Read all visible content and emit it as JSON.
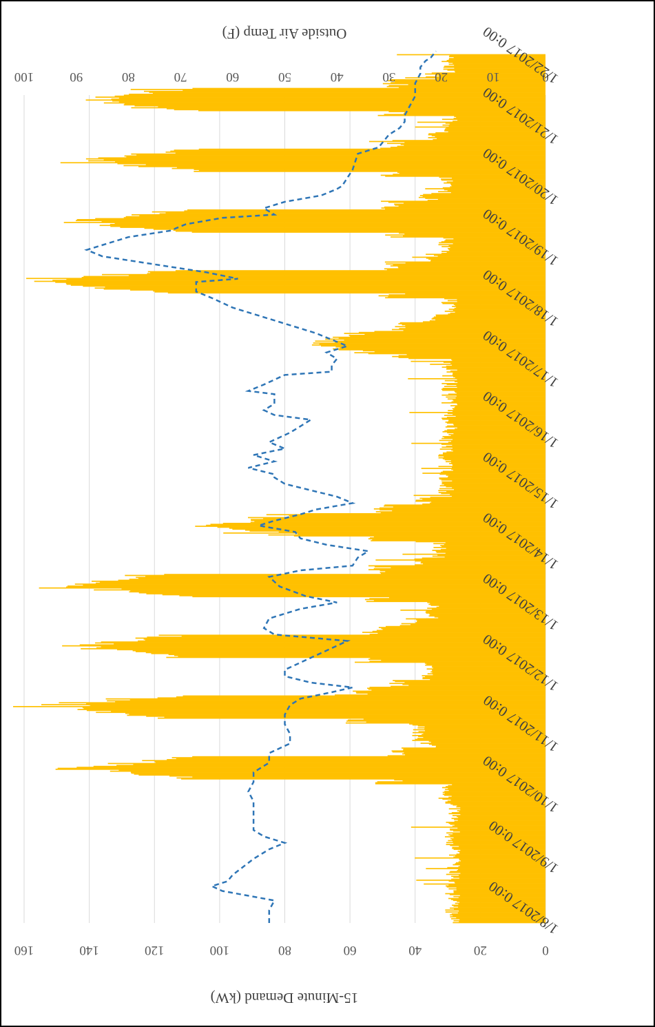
{
  "chart_data": {
    "type": "bar",
    "orientation": "rotated-180-degrees",
    "title": "",
    "xlabel": "",
    "ylabel": "15-Minute Demand (kW)",
    "y2label": "Outside Air Temp (F)",
    "ylim": [
      0,
      160
    ],
    "y2lim": [
      0,
      100
    ],
    "yticks": [
      "0",
      "20",
      "40",
      "60",
      "80",
      "100",
      "120",
      "140",
      "160"
    ],
    "y2ticks": [
      "0",
      "10",
      "20",
      "30",
      "40",
      "50",
      "60",
      "70",
      "80",
      "90",
      "100"
    ],
    "categories": [
      "1/8/2017 0:00",
      "1/9/2017 0:00",
      "1/10/2017 0:00",
      "1/11/2017 0:00",
      "1/12/2017 0:00",
      "1/13/2017 0:00",
      "1/14/2017 0:00",
      "1/15/2017 0:00",
      "1/16/2017 0:00",
      "1/17/2017 0:00",
      "1/18/2017 0:00",
      "1/19/2017 0:00",
      "1/20/2017 0:00",
      "1/21/2017 0:00",
      "1/22/2017 0:00"
    ],
    "grid": true,
    "colors": {
      "demand": "#FFC000",
      "temperature": "#2E75B6",
      "grid": "#D9D9D9"
    },
    "series": [
      {
        "type": "bar",
        "axis": "primary",
        "days": [
          {
            "date": "1/8/2017",
            "base": 26,
            "peak": 30
          },
          {
            "date": "1/9/2017",
            "base": 26,
            "peak": 30
          },
          {
            "date": "1/10/2017",
            "base": 28,
            "peak": 146
          },
          {
            "date": "1/11/2017",
            "base": 37,
            "peak": 154
          },
          {
            "date": "1/12/2017",
            "base": 34,
            "peak": 150
          },
          {
            "date": "1/13/2017",
            "base": 32,
            "peak": 152
          },
          {
            "date": "1/14/2017",
            "base": 30,
            "peak": 106
          },
          {
            "date": "1/15/2017",
            "base": 28,
            "peak": 28
          },
          {
            "date": "1/16/2017",
            "base": 27,
            "peak": 27
          },
          {
            "date": "1/17/2017",
            "base": 27,
            "peak": 77
          },
          {
            "date": "1/18/2017",
            "base": 27,
            "peak": 158
          },
          {
            "date": "1/19/2017",
            "base": 28,
            "peak": 150
          },
          {
            "date": "1/20/2017",
            "base": 28,
            "peak": 145
          },
          {
            "date": "1/21/2017",
            "base": 27,
            "peak": 146
          },
          {
            "date": "1/22/2017",
            "base": 27,
            "peak": 55
          }
        ]
      },
      {
        "type": "line",
        "axis": "secondary",
        "style": "dashed",
        "points": [
          [
            0.0,
            53
          ],
          [
            0.4,
            53
          ],
          [
            0.7,
            52
          ],
          [
            0.85,
            57
          ],
          [
            1.0,
            62
          ],
          [
            1.15,
            64
          ],
          [
            1.3,
            61
          ],
          [
            1.5,
            60
          ],
          [
            1.75,
            58
          ],
          [
            2.0,
            56
          ],
          [
            2.3,
            53
          ],
          [
            2.5,
            50
          ],
          [
            2.7,
            54
          ],
          [
            2.9,
            56
          ],
          [
            3.2,
            56
          ],
          [
            3.5,
            56
          ],
          [
            3.8,
            56
          ],
          [
            4.1,
            57
          ],
          [
            4.4,
            56
          ],
          [
            4.7,
            56
          ],
          [
            5.0,
            53
          ],
          [
            5.3,
            53
          ],
          [
            5.6,
            49
          ],
          [
            5.9,
            49
          ],
          [
            6.2,
            50
          ],
          [
            6.5,
            50
          ],
          [
            6.8,
            49
          ],
          [
            7.0,
            47
          ],
          [
            7.2,
            41
          ],
          [
            7.35,
            37
          ],
          [
            7.5,
            45
          ],
          [
            7.7,
            50
          ],
          [
            7.9,
            50
          ],
          [
            8.2,
            46
          ],
          [
            8.5,
            42
          ],
          [
            8.8,
            38
          ],
          [
            9.0,
            52
          ],
          [
            9.2,
            54
          ],
          [
            9.5,
            53
          ],
          [
            9.8,
            47
          ],
          [
            10.0,
            40
          ],
          [
            10.2,
            46
          ],
          [
            10.5,
            51
          ],
          [
            10.8,
            53
          ],
          [
            11.0,
            47
          ],
          [
            11.15,
            37
          ],
          [
            11.4,
            36
          ],
          [
            11.6,
            34
          ],
          [
            11.8,
            42
          ],
          [
            12.0,
            47
          ],
          [
            12.2,
            48
          ],
          [
            12.4,
            55
          ],
          [
            12.55,
            52
          ],
          [
            12.75,
            47
          ],
          [
            12.9,
            44
          ],
          [
            13.1,
            37
          ],
          [
            13.3,
            40
          ],
          [
            13.5,
            45
          ],
          [
            13.7,
            50
          ],
          [
            13.9,
            52
          ],
          [
            14.0,
            52
          ],
          [
            14.2,
            57
          ],
          [
            14.4,
            52
          ],
          [
            14.6,
            56
          ],
          [
            14.8,
            50
          ],
          [
            15.0,
            53
          ],
          [
            15.3,
            49
          ],
          [
            15.5,
            47
          ],
          [
            15.7,
            45
          ],
          [
            15.85,
            52
          ],
          [
            16.0,
            54
          ],
          [
            16.2,
            52
          ],
          [
            16.5,
            52
          ],
          [
            16.6,
            57
          ],
          [
            16.8,
            54
          ],
          [
            17.1,
            50
          ],
          [
            17.2,
            41
          ],
          [
            17.4,
            41
          ],
          [
            17.6,
            40
          ],
          [
            17.8,
            42
          ],
          [
            18.0,
            38
          ],
          [
            18.2,
            41
          ],
          [
            18.4,
            44
          ],
          [
            18.6,
            48
          ],
          [
            18.8,
            52
          ],
          [
            19.0,
            56
          ],
          [
            19.2,
            60
          ],
          [
            19.5,
            64
          ],
          [
            19.7,
            67
          ],
          [
            20.0,
            67
          ],
          [
            20.1,
            59
          ],
          [
            20.3,
            65
          ],
          [
            20.5,
            73
          ],
          [
            20.8,
            85
          ],
          [
            21.0,
            88
          ],
          [
            21.2,
            84
          ],
          [
            21.4,
            80
          ],
          [
            21.6,
            72
          ],
          [
            21.8,
            69
          ],
          [
            22.0,
            62
          ],
          [
            22.1,
            52
          ],
          [
            22.3,
            54
          ],
          [
            22.5,
            50
          ],
          [
            22.7,
            43
          ],
          [
            22.9,
            40
          ],
          [
            23.0,
            39
          ],
          [
            23.5,
            37
          ],
          [
            24.0,
            36
          ],
          [
            24.2,
            32
          ],
          [
            24.4,
            31
          ],
          [
            24.6,
            30
          ],
          [
            24.8,
            28
          ],
          [
            25.0,
            27
          ],
          [
            25.2,
            27
          ],
          [
            25.5,
            26
          ],
          [
            25.8,
            25
          ],
          [
            26.0,
            25
          ],
          [
            26.2,
            25
          ],
          [
            26.5,
            24
          ],
          [
            26.7,
            24
          ],
          [
            26.9,
            23
          ],
          [
            27.0,
            22
          ],
          [
            27.2,
            21
          ]
        ]
      }
    ]
  }
}
